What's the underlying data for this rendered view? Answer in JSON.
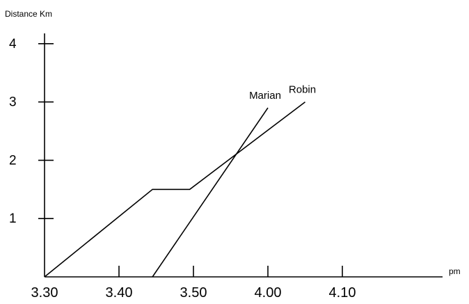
{
  "chart_data": {
    "type": "line",
    "title": "",
    "ylabel": "Distance Km",
    "xlabel": "pm",
    "x_ticks": [
      {
        "value": 0,
        "label": "3.30"
      },
      {
        "value": 10,
        "label": "3.40"
      },
      {
        "value": 20,
        "label": "3.50"
      },
      {
        "value": 30,
        "label": "4.00"
      },
      {
        "value": 40,
        "label": "4.10"
      }
    ],
    "y_ticks": [
      {
        "value": 1,
        "label": "1"
      },
      {
        "value": 2,
        "label": "2"
      },
      {
        "value": 3,
        "label": "3"
      },
      {
        "value": 4,
        "label": "4"
      }
    ],
    "xlim": [
      0,
      53
    ],
    "ylim": [
      0,
      4.4
    ],
    "grid": false,
    "series": [
      {
        "name": "Robin",
        "points": [
          {
            "x": 0,
            "y": 0
          },
          {
            "x": 14.5,
            "y": 1.5
          },
          {
            "x": 19.5,
            "y": 1.5
          },
          {
            "x": 35,
            "y": 3.0
          }
        ]
      },
      {
        "name": "Marian",
        "points": [
          {
            "x": 14.5,
            "y": 0
          },
          {
            "x": 30,
            "y": 2.9
          }
        ]
      }
    ]
  }
}
